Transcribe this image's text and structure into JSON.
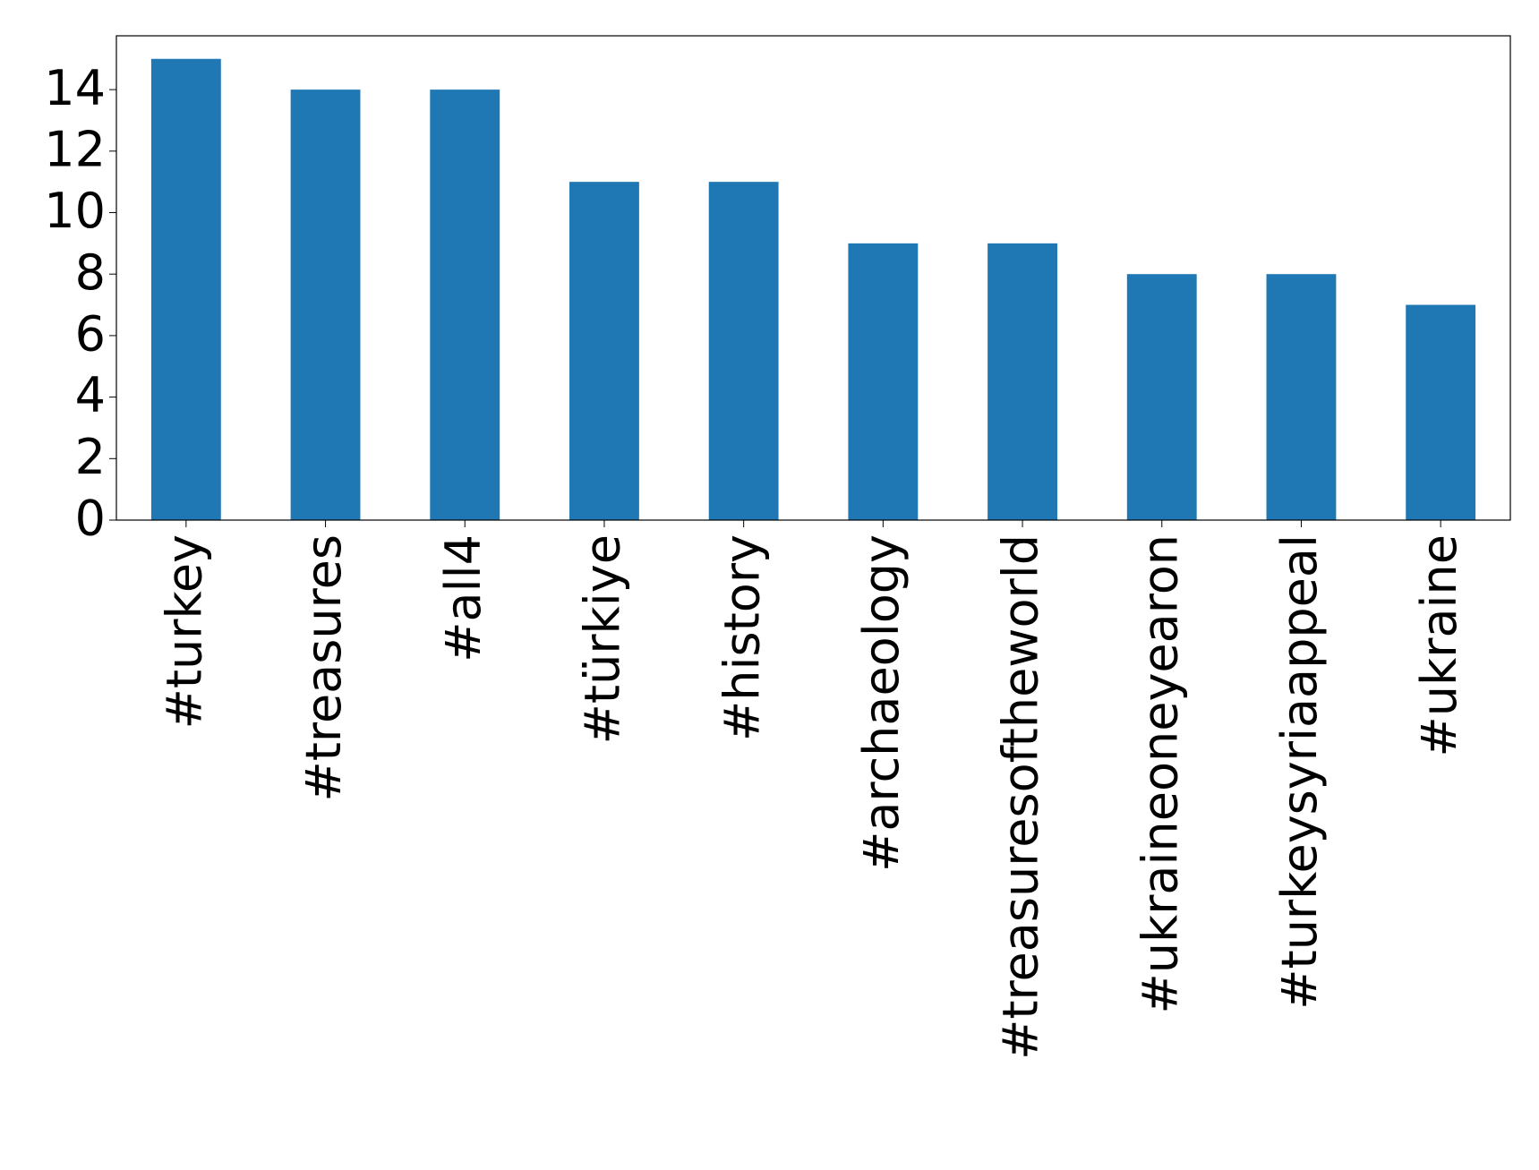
{
  "chart_data": {
    "type": "bar",
    "categories": [
      "#turkey",
      "#treasures",
      "#all4",
      "#türkiye",
      "#history",
      "#archaeology",
      "#treasuresoftheworld",
      "#ukraineoneyearon",
      "#turkeysyriaappeal",
      "#ukraine"
    ],
    "values": [
      15,
      14,
      14,
      11,
      11,
      9,
      9,
      8,
      8,
      7
    ],
    "color": "#1f77b4",
    "ylim": [
      0,
      15.75
    ],
    "yticks": [
      0,
      2,
      4,
      6,
      8,
      10,
      12,
      14
    ],
    "grid": false
  }
}
